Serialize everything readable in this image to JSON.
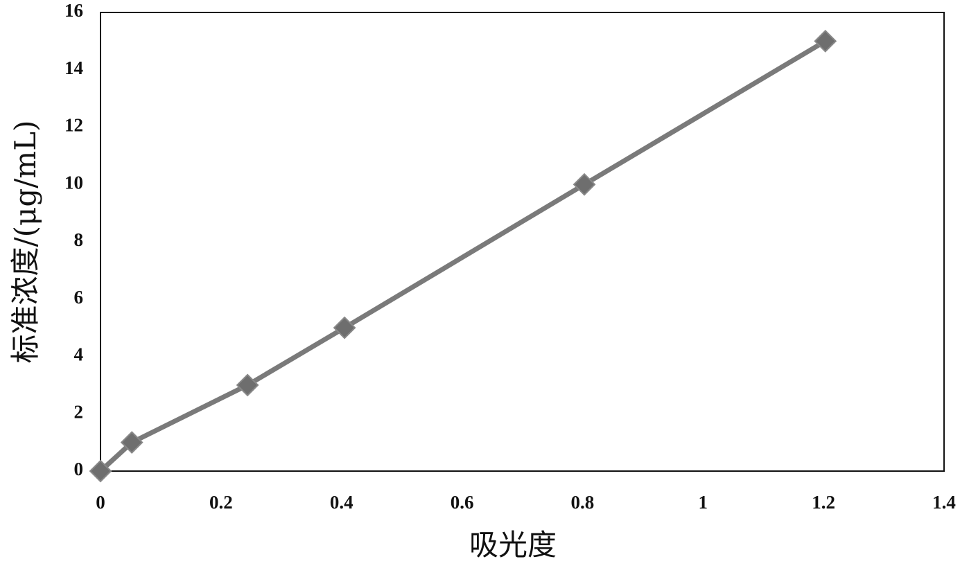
{
  "chart_data": {
    "type": "line",
    "x_label": "吸光度",
    "y_label": "标准浓度/(μg/mL)",
    "x": [
      0,
      0.052,
      0.244,
      0.405,
      0.803,
      1.203
    ],
    "values": [
      0,
      1,
      3,
      5,
      10,
      15
    ],
    "color": "#7a7a7a",
    "marker_color": "#6e6e6e",
    "xlim": [
      0,
      1.4
    ],
    "xticks": [
      0,
      0.2,
      0.4,
      0.6,
      0.8,
      1,
      1.2,
      1.4
    ],
    "ylim": [
      0,
      16
    ],
    "yticks": [
      0,
      2,
      4,
      6,
      8,
      10,
      12,
      14,
      16
    ],
    "grid": false
  }
}
